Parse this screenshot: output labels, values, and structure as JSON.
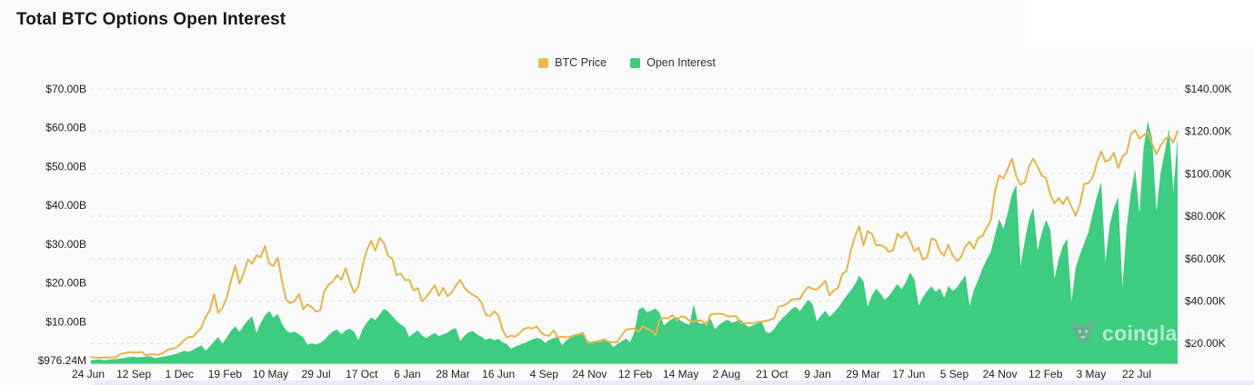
{
  "title": "Total BTC Options Open Interest",
  "legend": {
    "items": [
      {
        "label": "BTC Price",
        "color": "#EBB94E"
      },
      {
        "label": "Open Interest",
        "color": "#3BCB7C"
      }
    ]
  },
  "watermark": {
    "text": "coinglass"
  },
  "colors": {
    "background": "#FAFAFA",
    "gridline": "#E5E5E5",
    "baseline": "#DFDFDF",
    "price_line": "#E8B44C",
    "oi_area": "#3DCC80",
    "axis_text": "#1F1F1F"
  },
  "chart_data": {
    "type": "area",
    "title": "Total BTC Options Open Interest",
    "grid": "horizontal-dashed",
    "legend_position": "top-center",
    "x_tick_labels": [
      "24 Jun",
      "12 Sep",
      "1 Dec",
      "19 Feb",
      "10 May",
      "29 Jul",
      "17 Oct",
      "6 Jan",
      "28 Mar",
      "16 Jun",
      "4 Sep",
      "24 Nov",
      "12 Feb",
      "14 May",
      "2 Aug",
      "21 Oct",
      "9 Jan",
      "29 Mar",
      "17 Jun",
      "5 Sep",
      "24 Nov",
      "12 Feb",
      "3 May",
      "22 Jul"
    ],
    "left_axis": {
      "labels": [
        "$70.00B",
        "$60.00B",
        "$50.00B",
        "$40.00B",
        "$30.00B",
        "$20.00B",
        "$10.00B",
        "$976.24M"
      ],
      "max_billion": 70,
      "min_label": "$976.24M"
    },
    "right_axis": {
      "labels": [
        "$140.00K",
        "$120.00K",
        "$100.00K",
        "$80.00K",
        "$60.00K",
        "$40.00K",
        "$20.00K"
      ],
      "max_thousand": 140
    },
    "series": [
      {
        "name": "Open Interest",
        "kind": "area",
        "axis": "left",
        "unit": "billion USD",
        "color": "#3DCC80",
        "values": [
          1.0,
          1.1,
          1.2,
          1.0,
          1.1,
          1.2,
          1.3,
          1.4,
          1.6,
          1.8,
          1.9,
          1.7,
          1.8,
          1.9,
          2.0,
          1.5,
          1.7,
          1.9,
          2.1,
          2.3,
          2.6,
          3.0,
          3.4,
          3.1,
          3.6,
          4.2,
          4.8,
          3.4,
          4.5,
          5.8,
          6.9,
          5.2,
          6.8,
          8.5,
          9.6,
          8.2,
          9.8,
          11.2,
          12.1,
          7.9,
          10.5,
          12.4,
          13.5,
          11.8,
          12.8,
          10.2,
          8.6,
          7.9,
          8.3,
          7.6,
          6.9,
          4.9,
          5.3,
          5.0,
          5.4,
          6.2,
          7.4,
          8.3,
          8.8,
          7.6,
          8.6,
          9.0,
          8.2,
          6.1,
          8.9,
          10.6,
          11.9,
          11.2,
          12.6,
          14.1,
          13.4,
          12.2,
          11.0,
          10.1,
          9.3,
          6.9,
          7.8,
          8.6,
          7.3,
          6.6,
          7.3,
          7.9,
          7.1,
          7.6,
          8.0,
          8.8,
          9.2,
          5.9,
          7.2,
          8.1,
          8.4,
          7.5,
          7.0,
          6.2,
          6.6,
          6.1,
          6.4,
          5.6,
          5.0,
          3.9,
          4.5,
          4.9,
          5.3,
          5.8,
          6.3,
          6.7,
          6.4,
          5.4,
          6.2,
          6.6,
          6.9,
          4.8,
          6.1,
          6.7,
          7.4,
          7.8,
          8.2,
          6.0,
          5.5,
          5.9,
          6.2,
          6.5,
          5.9,
          4.3,
          5.1,
          5.8,
          6.5,
          5.6,
          8.0,
          13.8,
          14.5,
          13.2,
          13.6,
          14.2,
          13.0,
          9.8,
          10.8,
          11.6,
          12.0,
          11.0,
          10.4,
          10.0,
          15.2,
          10.6,
          10.2,
          10.8,
          11.5,
          8.9,
          10.0,
          10.8,
          11.3,
          10.5,
          10.9,
          11.4,
          10.2,
          9.4,
          9.9,
          10.4,
          10.8,
          8.2,
          7.9,
          9.0,
          10.6,
          11.8,
          12.8,
          13.9,
          14.6,
          13.5,
          15.0,
          16.4,
          15.2,
          10.9,
          12.4,
          13.6,
          12.0,
          13.1,
          14.3,
          15.9,
          17.4,
          18.8,
          20.3,
          22.5,
          21.0,
          14.6,
          17.5,
          19.2,
          18.0,
          16.3,
          17.4,
          18.9,
          20.4,
          19.0,
          20.9,
          23.3,
          21.5,
          14.9,
          17.0,
          18.6,
          19.8,
          18.4,
          19.3,
          16.8,
          19.9,
          18.6,
          19.5,
          21.1,
          22.6,
          14.8,
          18.9,
          21.4,
          24.3,
          26.5,
          28.6,
          33.0,
          36.9,
          34.4,
          38.6,
          43.2,
          45.6,
          24.9,
          31.5,
          36.8,
          39.9,
          28.9,
          33.4,
          36.7,
          34.2,
          21.7,
          26.7,
          30.2,
          31.8,
          15.9,
          24.6,
          27.9,
          30.8,
          33.6,
          38.2,
          42.7,
          46.3,
          25.8,
          35.4,
          39.8,
          42.6,
          19.6,
          34.7,
          43.9,
          49.6,
          38.2,
          55.2,
          61.8,
          57.3,
          38.9,
          48.6,
          54.2,
          59.8,
          43.7,
          57.8
        ]
      },
      {
        "name": "BTC Price",
        "kind": "line",
        "axis": "right",
        "unit": "thousand USD",
        "color": "#E8B44C",
        "values": [
          9.4,
          9.2,
          9.1,
          9.2,
          9.2,
          9.2,
          9.5,
          11.0,
          11.3,
          11.8,
          11.6,
          11.7,
          11.9,
          10.2,
          10.8,
          10.7,
          10.6,
          11.4,
          12.9,
          13.5,
          14.0,
          15.5,
          17.8,
          19.2,
          19.3,
          21.5,
          23.8,
          28.9,
          32.0,
          40.1,
          31.0,
          33.4,
          38.3,
          46.5,
          54.0,
          45.2,
          50.3,
          57.0,
          54.9,
          58.9,
          58.2,
          63.5,
          55.0,
          53.8,
          57.8,
          46.4,
          37.3,
          35.7,
          36.8,
          40.2,
          32.7,
          35.0,
          33.8,
          31.6,
          32.1,
          41.5,
          44.6,
          46.3,
          49.3,
          47.1,
          52.7,
          46.1,
          40.7,
          43.8,
          54.0,
          61.6,
          66.0,
          61.3,
          67.5,
          65.0,
          58.7,
          57.3,
          49.3,
          50.1,
          46.9,
          47.1,
          41.9,
          43.1,
          36.5,
          38.5,
          41.5,
          44.4,
          39.2,
          43.2,
          39.0,
          41.0,
          44.3,
          47.1,
          43.2,
          41.1,
          39.7,
          38.6,
          36.0,
          30.1,
          29.4,
          31.7,
          29.8,
          22.5,
          19.0,
          19.9,
          19.3,
          21.2,
          23.2,
          23.8,
          23.3,
          24.4,
          21.5,
          20.0,
          19.8,
          22.4,
          18.9,
          19.4,
          19.1,
          19.3,
          20.1,
          20.5,
          21.0,
          16.3,
          16.5,
          17.1,
          17.0,
          17.8,
          16.8,
          16.6,
          16.9,
          19.9,
          22.7,
          23.1,
          23.3,
          21.8,
          24.6,
          23.2,
          22.4,
          20.2,
          27.5,
          28.5,
          28.2,
          30.0,
          27.3,
          29.2,
          28.9,
          27.0,
          26.8,
          27.2,
          27.1,
          25.1,
          30.2,
          30.5,
          30.6,
          30.3,
          29.2,
          29.3,
          29.4,
          26.0,
          26.1,
          26.0,
          25.8,
          26.5,
          26.6,
          27.0,
          27.6,
          28.4,
          34.0,
          34.5,
          35.4,
          37.3,
          37.8,
          37.7,
          41.2,
          43.7,
          42.6,
          42.3,
          44.2,
          46.6,
          39.5,
          42.0,
          43.1,
          49.9,
          51.3,
          61.2,
          68.3,
          73.0,
          63.8,
          70.8,
          69.4,
          63.8,
          64.0,
          63.1,
          60.6,
          61.5,
          69.4,
          67.5,
          70.5,
          66.0,
          61.0,
          62.7,
          56.8,
          58.0,
          67.2,
          66.4,
          61.0,
          58.7,
          64.1,
          59.0,
          56.2,
          58.1,
          63.3,
          65.6,
          62.2,
          67.4,
          68.4,
          72.3,
          76.0,
          90.5,
          98.0,
          96.4,
          101.2,
          106.1,
          97.5,
          93.4,
          94.6,
          102.3,
          106.1,
          102.1,
          97.9,
          96.6,
          88.7,
          84.3,
          86.8,
          83.9,
          87.5,
          82.5,
          78.4,
          83.8,
          93.7,
          94.2,
          97.0,
          104.1,
          109.7,
          104.6,
          105.6,
          108.9,
          101.5,
          107.1,
          108.9,
          118.0,
          119.9,
          115.8,
          117.4,
          119.0,
          113.2,
          108.2,
          112.4,
          115.5,
          116.8,
          114.0,
          119.5
        ]
      }
    ]
  }
}
